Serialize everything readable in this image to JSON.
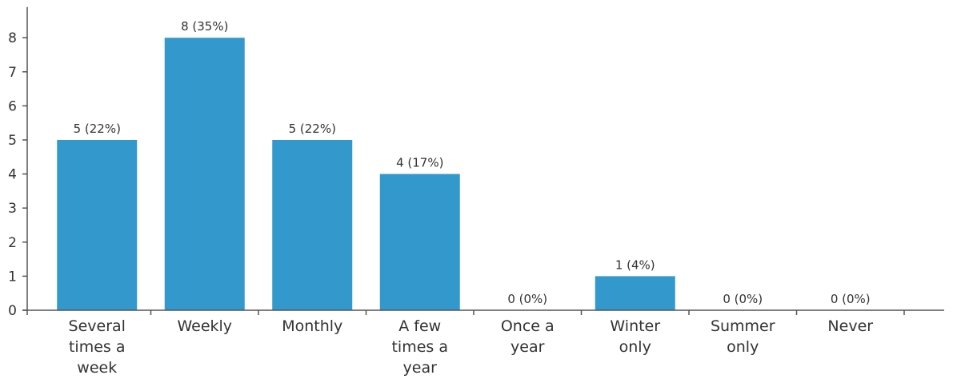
{
  "chart_data": {
    "type": "bar",
    "categories": [
      [
        "Several",
        "times a",
        "week"
      ],
      [
        "Weekly"
      ],
      [
        "Monthly"
      ],
      [
        "A few",
        "times a",
        "year"
      ],
      [
        "Once a",
        "year"
      ],
      [
        "Winter",
        "only"
      ],
      [
        "Summer",
        "only"
      ],
      [
        "Never"
      ]
    ],
    "values": [
      5,
      8,
      5,
      4,
      0,
      1,
      0,
      0
    ],
    "data_labels": [
      "5 (22%)",
      "8 (35%)",
      "5 (22%)",
      "4 (17%)",
      "0 (0%)",
      "1 (4%)",
      "0 (0%)",
      "0 (0%)"
    ],
    "yticks": [
      "0",
      "1",
      "2",
      "3",
      "4",
      "5",
      "6",
      "7",
      "8"
    ],
    "ylim": [
      0,
      8.9
    ],
    "grid": false,
    "legend": "none",
    "bar_color": "#3399cc",
    "axis_color": "#555555",
    "text_color": "#333333"
  }
}
